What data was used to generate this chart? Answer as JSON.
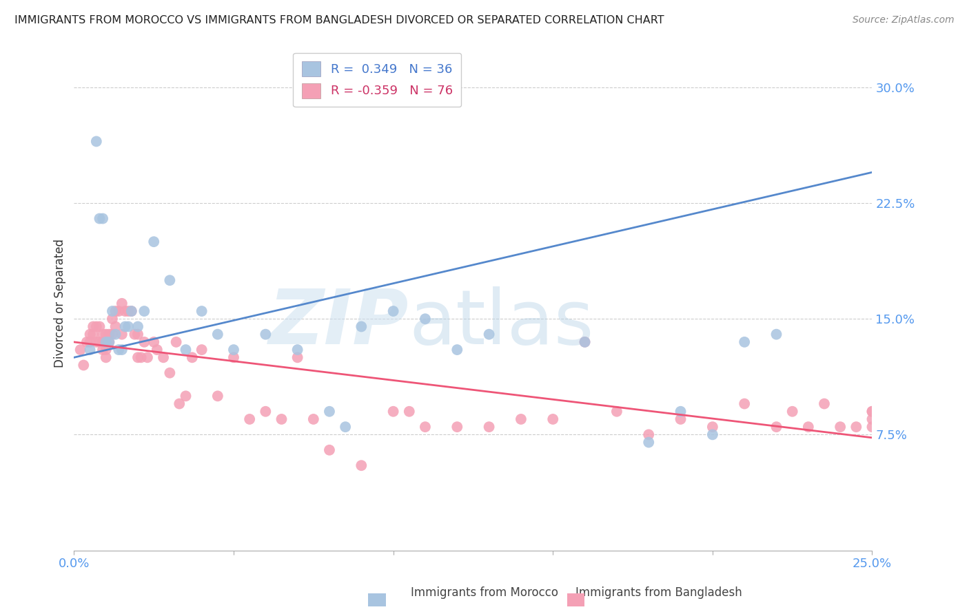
{
  "title": "IMMIGRANTS FROM MOROCCO VS IMMIGRANTS FROM BANGLADESH DIVORCED OR SEPARATED CORRELATION CHART",
  "source": "Source: ZipAtlas.com",
  "ylabel": "Divorced or Separated",
  "xlim": [
    0.0,
    0.25
  ],
  "ylim": [
    0.0,
    0.32
  ],
  "ytick_vals": [
    0.075,
    0.15,
    0.225,
    0.3
  ],
  "ytick_labels": [
    "7.5%",
    "15.0%",
    "22.5%",
    "30.0%"
  ],
  "xtick_vals": [
    0.0,
    0.05,
    0.1,
    0.15,
    0.2,
    0.25
  ],
  "xtick_labels_show": [
    "0.0%",
    "",
    "",
    "",
    "",
    "25.0%"
  ],
  "legend_morocco_r": "0.349",
  "legend_morocco_n": "36",
  "legend_bangladesh_r": "-0.359",
  "legend_bangladesh_n": "76",
  "morocco_color": "#a8c4e0",
  "bangladesh_color": "#f4a0b5",
  "morocco_line_color": "#5588cc",
  "bangladesh_line_color": "#ee5577",
  "morocco_scatter_x": [
    0.005,
    0.007,
    0.008,
    0.009,
    0.01,
    0.011,
    0.012,
    0.013,
    0.014,
    0.015,
    0.016,
    0.017,
    0.018,
    0.02,
    0.022,
    0.025,
    0.03,
    0.035,
    0.04,
    0.045,
    0.05,
    0.06,
    0.07,
    0.08,
    0.085,
    0.09,
    0.1,
    0.11,
    0.12,
    0.13,
    0.16,
    0.18,
    0.19,
    0.2,
    0.21,
    0.22
  ],
  "morocco_scatter_y": [
    0.13,
    0.265,
    0.215,
    0.215,
    0.135,
    0.135,
    0.155,
    0.14,
    0.13,
    0.13,
    0.145,
    0.145,
    0.155,
    0.145,
    0.155,
    0.2,
    0.175,
    0.13,
    0.155,
    0.14,
    0.13,
    0.14,
    0.13,
    0.09,
    0.08,
    0.145,
    0.155,
    0.15,
    0.13,
    0.14,
    0.135,
    0.07,
    0.09,
    0.075,
    0.135,
    0.14
  ],
  "bangladesh_scatter_x": [
    0.002,
    0.003,
    0.004,
    0.005,
    0.005,
    0.006,
    0.006,
    0.007,
    0.007,
    0.008,
    0.008,
    0.009,
    0.009,
    0.009,
    0.01,
    0.01,
    0.01,
    0.011,
    0.011,
    0.012,
    0.012,
    0.013,
    0.013,
    0.014,
    0.015,
    0.015,
    0.016,
    0.017,
    0.018,
    0.019,
    0.02,
    0.02,
    0.021,
    0.022,
    0.023,
    0.025,
    0.026,
    0.028,
    0.03,
    0.032,
    0.033,
    0.035,
    0.037,
    0.04,
    0.045,
    0.05,
    0.055,
    0.06,
    0.065,
    0.07,
    0.075,
    0.08,
    0.09,
    0.1,
    0.105,
    0.11,
    0.12,
    0.13,
    0.14,
    0.15,
    0.16,
    0.17,
    0.18,
    0.19,
    0.2,
    0.21,
    0.22,
    0.225,
    0.23,
    0.235,
    0.24,
    0.245,
    0.25,
    0.25,
    0.25,
    0.25
  ],
  "bangladesh_scatter_y": [
    0.13,
    0.12,
    0.135,
    0.14,
    0.135,
    0.14,
    0.145,
    0.135,
    0.145,
    0.135,
    0.145,
    0.13,
    0.135,
    0.14,
    0.125,
    0.13,
    0.14,
    0.135,
    0.14,
    0.14,
    0.15,
    0.155,
    0.145,
    0.155,
    0.14,
    0.16,
    0.155,
    0.155,
    0.155,
    0.14,
    0.125,
    0.14,
    0.125,
    0.135,
    0.125,
    0.135,
    0.13,
    0.125,
    0.115,
    0.135,
    0.095,
    0.1,
    0.125,
    0.13,
    0.1,
    0.125,
    0.085,
    0.09,
    0.085,
    0.125,
    0.085,
    0.065,
    0.055,
    0.09,
    0.09,
    0.08,
    0.08,
    0.08,
    0.085,
    0.085,
    0.135,
    0.09,
    0.075,
    0.085,
    0.08,
    0.095,
    0.08,
    0.09,
    0.08,
    0.095,
    0.08,
    0.08,
    0.085,
    0.09,
    0.08,
    0.09
  ]
}
